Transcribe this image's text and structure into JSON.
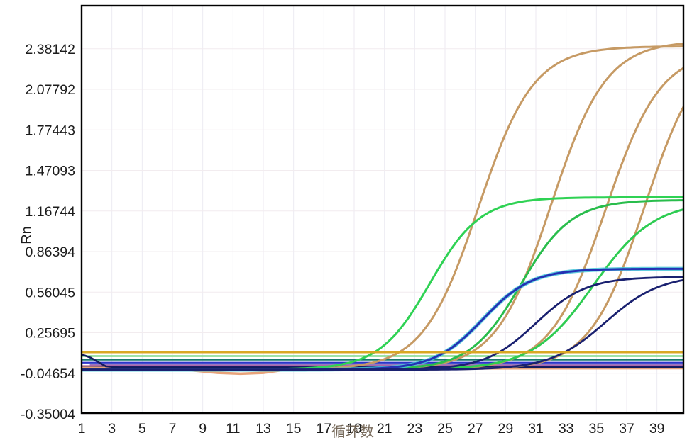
{
  "figure": {
    "type_label": "qPCR amplification plot"
  },
  "chart_data": {
    "type": "line",
    "title": "",
    "xlabel": "循环数",
    "ylabel": "Rn",
    "xlim": [
      1,
      40.75
    ],
    "ylim": [
      -0.3447,
      2.7035
    ],
    "grid": true,
    "legend_position": "none",
    "x_ticks": [
      1,
      3,
      5,
      7,
      9,
      11,
      13,
      15,
      17,
      19,
      21,
      23,
      25,
      27,
      29,
      31,
      33,
      35,
      37,
      39
    ],
    "y_ticks": [
      {
        "label": "2.38142",
        "value": 2.38142
      },
      {
        "label": "2.07792",
        "value": 2.07792
      },
      {
        "label": "1.77443",
        "value": 1.77443
      },
      {
        "label": "1.47093",
        "value": 1.47093
      },
      {
        "label": "1.16744",
        "value": 1.16744
      },
      {
        "label": "0.86394",
        "value": 0.86394
      },
      {
        "label": "0.56045",
        "value": 0.56045
      },
      {
        "label": "0.25695",
        "value": 0.25695
      },
      {
        "label": "-0.04654",
        "value": -0.04654
      },
      {
        "label": "-0.35004",
        "value": -0.35004
      }
    ],
    "threshold": {
      "id": "threshold-line",
      "value": 0.112,
      "color": "#D9A823",
      "width": 3.2
    },
    "flat_lines": [
      {
        "id": "flat-lightgreen",
        "value": 0.082,
        "color": "#7EDC8C",
        "width": 2.4
      },
      {
        "id": "flat-teal",
        "value": 0.055,
        "color": "#17796B",
        "width": 2.2
      },
      {
        "id": "flat-blue",
        "value": 0.033,
        "color": "#2B35C9",
        "width": 2.2
      },
      {
        "id": "flat-purple",
        "value": 0.016,
        "color": "#9778BE",
        "width": 2.6,
        "from": 1.6
      },
      {
        "id": "flat-magenta",
        "value": 0.009,
        "color": "#B85A9E",
        "width": 1.8
      },
      {
        "id": "flat-navy",
        "value": 0.002,
        "color": "#1A2170",
        "width": 2.2
      },
      {
        "id": "flat-darkgreen",
        "value": -0.006,
        "color": "#1F7A33",
        "width": 2.2
      }
    ],
    "series": [
      {
        "id": "orange-baseline-dip",
        "color": "#E8A37A",
        "width": 3.5,
        "model": "points",
        "points": [
          [
            1,
            -0.006
          ],
          [
            6.5,
            -0.009
          ],
          [
            8,
            -0.022
          ],
          [
            10,
            -0.043
          ],
          [
            11.5,
            -0.05
          ],
          [
            13,
            -0.043
          ],
          [
            14.5,
            -0.02
          ],
          [
            16,
            -0.011
          ],
          [
            40.75,
            -0.008
          ]
        ]
      },
      {
        "id": "navy-baseline-dip",
        "color": "#141B5E",
        "width": 2.6,
        "model": "points",
        "points": [
          [
            1,
            0.095
          ],
          [
            1.6,
            0.07
          ],
          [
            2.6,
            0.005
          ],
          [
            3.5,
            -0.004
          ],
          [
            40.75,
            -0.004
          ]
        ]
      },
      {
        "id": "orange-1",
        "color": "#C69A64",
        "width": 3,
        "model": "logistic",
        "baseline": -0.018,
        "plateau": 2.4,
        "rate": 0.55,
        "midpoint": 27.2
      },
      {
        "id": "orange-2",
        "color": "#C69A64",
        "width": 3,
        "model": "logistic",
        "baseline": -0.018,
        "plateau": 2.44,
        "rate": 0.55,
        "midpoint": 32.0
      },
      {
        "id": "orange-3",
        "color": "#C69A64",
        "width": 3,
        "model": "logistic",
        "baseline": -0.018,
        "plateau": 2.37,
        "rate": 0.55,
        "midpoint": 35.6
      },
      {
        "id": "orange-4",
        "color": "#C69A64",
        "width": 3,
        "model": "logistic",
        "baseline": -0.018,
        "plateau": 2.43,
        "rate": 0.55,
        "midpoint": 38.2
      },
      {
        "id": "green-1",
        "color": "#2FD254",
        "width": 3,
        "model": "logistic",
        "baseline": -0.018,
        "plateau": 1.27,
        "rate": 0.6,
        "midpoint": 24.0
      },
      {
        "id": "green-2",
        "color": "#29BD4C",
        "width": 3,
        "model": "logistic",
        "baseline": -0.018,
        "plateau": 1.25,
        "rate": 0.6,
        "midpoint": 30.0
      },
      {
        "id": "green-3",
        "color": "#2ECC52",
        "width": 3,
        "model": "logistic",
        "baseline": -0.018,
        "plateau": 1.24,
        "rate": 0.5,
        "midpoint": 34.8
      },
      {
        "id": "blue-1",
        "color": "#2431B4",
        "width": 3,
        "glow": "#45C6D8",
        "glow_width": 5.5,
        "model": "logistic",
        "baseline": -0.02,
        "plateau": 0.735,
        "rate": 0.62,
        "midpoint": 27.5
      },
      {
        "id": "navy-2",
        "color": "#1A2170",
        "width": 2.8,
        "model": "logistic",
        "baseline": -0.02,
        "plateau": 0.675,
        "rate": 0.6,
        "midpoint": 31.0
      },
      {
        "id": "navy-3",
        "color": "#1A2170",
        "width": 2.8,
        "model": "logistic",
        "baseline": -0.02,
        "plateau": 0.69,
        "rate": 0.55,
        "midpoint": 35.6
      }
    ],
    "grid_colors": {
      "vertical": "#ECEAF2",
      "horizontal": "#F2ECEF"
    },
    "border_color": "#000000"
  }
}
